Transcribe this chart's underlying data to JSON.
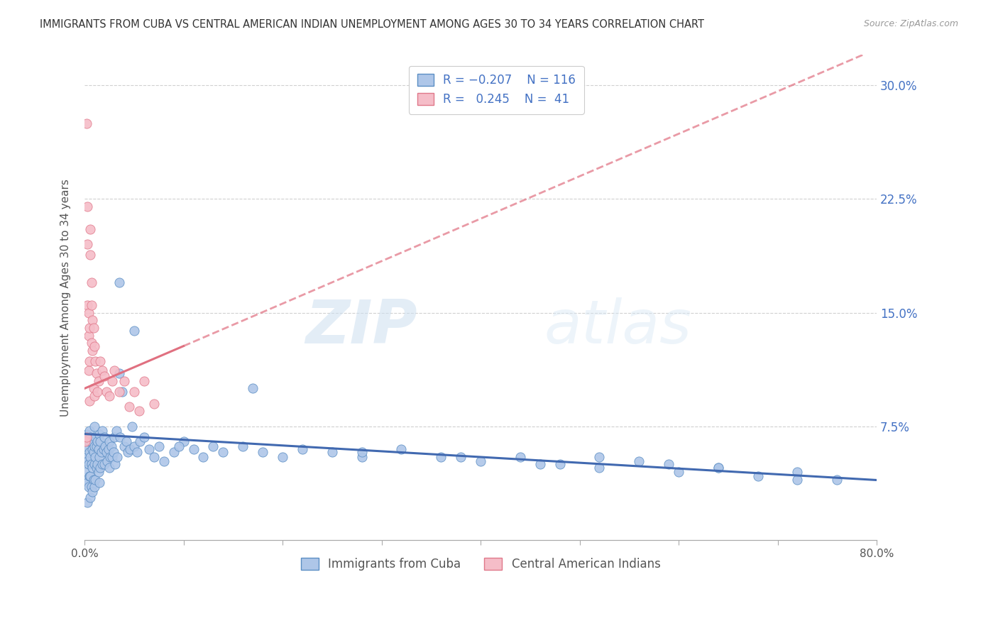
{
  "title": "IMMIGRANTS FROM CUBA VS CENTRAL AMERICAN INDIAN UNEMPLOYMENT AMONG AGES 30 TO 34 YEARS CORRELATION CHART",
  "source": "Source: ZipAtlas.com",
  "ylabel": "Unemployment Among Ages 30 to 34 years",
  "xlim": [
    0.0,
    0.8
  ],
  "ylim": [
    0.0,
    0.32
  ],
  "blue_fill": "#aec6e8",
  "blue_edge": "#5b8ec4",
  "pink_fill": "#f5bdc8",
  "pink_edge": "#e0788a",
  "blue_line_color": "#4169b0",
  "pink_line_color": "#e07080",
  "blue_intercept": 0.07,
  "blue_slope": -0.038,
  "pink_intercept": 0.1,
  "pink_slope": 0.28,
  "blue_dots_x": [
    0.001,
    0.001,
    0.002,
    0.002,
    0.002,
    0.003,
    0.003,
    0.003,
    0.003,
    0.004,
    0.004,
    0.004,
    0.005,
    0.005,
    0.005,
    0.006,
    0.006,
    0.006,
    0.006,
    0.007,
    0.007,
    0.007,
    0.008,
    0.008,
    0.008,
    0.009,
    0.009,
    0.01,
    0.01,
    0.01,
    0.01,
    0.011,
    0.011,
    0.011,
    0.012,
    0.012,
    0.013,
    0.013,
    0.014,
    0.014,
    0.015,
    0.015,
    0.015,
    0.016,
    0.016,
    0.017,
    0.018,
    0.018,
    0.019,
    0.02,
    0.02,
    0.021,
    0.022,
    0.023,
    0.024,
    0.025,
    0.025,
    0.026,
    0.027,
    0.028,
    0.029,
    0.03,
    0.031,
    0.032,
    0.033,
    0.035,
    0.036,
    0.038,
    0.04,
    0.042,
    0.044,
    0.046,
    0.048,
    0.05,
    0.053,
    0.056,
    0.06,
    0.065,
    0.07,
    0.075,
    0.08,
    0.09,
    0.1,
    0.11,
    0.12,
    0.13,
    0.14,
    0.16,
    0.18,
    0.2,
    0.22,
    0.25,
    0.28,
    0.32,
    0.36,
    0.4,
    0.44,
    0.48,
    0.52,
    0.56,
    0.6,
    0.64,
    0.68,
    0.72,
    0.76,
    0.035,
    0.05,
    0.095,
    0.17,
    0.28,
    0.38,
    0.46,
    0.52,
    0.59,
    0.64,
    0.72
  ],
  "blue_dots_y": [
    0.062,
    0.045,
    0.07,
    0.055,
    0.04,
    0.068,
    0.052,
    0.038,
    0.025,
    0.065,
    0.05,
    0.035,
    0.072,
    0.058,
    0.042,
    0.068,
    0.055,
    0.042,
    0.028,
    0.065,
    0.05,
    0.035,
    0.06,
    0.048,
    0.032,
    0.058,
    0.04,
    0.075,
    0.062,
    0.05,
    0.035,
    0.068,
    0.055,
    0.04,
    0.062,
    0.048,
    0.065,
    0.05,
    0.06,
    0.045,
    0.07,
    0.055,
    0.038,
    0.065,
    0.048,
    0.058,
    0.072,
    0.05,
    0.06,
    0.068,
    0.05,
    0.062,
    0.058,
    0.052,
    0.06,
    0.065,
    0.048,
    0.055,
    0.062,
    0.055,
    0.058,
    0.068,
    0.05,
    0.072,
    0.055,
    0.11,
    0.068,
    0.098,
    0.062,
    0.065,
    0.058,
    0.06,
    0.075,
    0.062,
    0.058,
    0.065,
    0.068,
    0.06,
    0.055,
    0.062,
    0.052,
    0.058,
    0.065,
    0.06,
    0.055,
    0.062,
    0.058,
    0.062,
    0.058,
    0.055,
    0.06,
    0.058,
    0.055,
    0.06,
    0.055,
    0.052,
    0.055,
    0.05,
    0.048,
    0.052,
    0.045,
    0.048,
    0.042,
    0.045,
    0.04,
    0.17,
    0.138,
    0.062,
    0.1,
    0.058,
    0.055,
    0.05,
    0.055,
    0.05,
    0.048,
    0.04
  ],
  "pink_dots_x": [
    0.001,
    0.002,
    0.002,
    0.003,
    0.003,
    0.003,
    0.004,
    0.004,
    0.004,
    0.005,
    0.005,
    0.005,
    0.006,
    0.006,
    0.007,
    0.007,
    0.007,
    0.008,
    0.008,
    0.009,
    0.009,
    0.01,
    0.01,
    0.011,
    0.012,
    0.013,
    0.014,
    0.016,
    0.018,
    0.02,
    0.022,
    0.025,
    0.028,
    0.03,
    0.035,
    0.04,
    0.045,
    0.05,
    0.055,
    0.06,
    0.07
  ],
  "pink_dots_y": [
    0.065,
    0.275,
    0.068,
    0.22,
    0.195,
    0.155,
    0.15,
    0.135,
    0.112,
    0.14,
    0.118,
    0.092,
    0.205,
    0.188,
    0.17,
    0.155,
    0.13,
    0.145,
    0.125,
    0.14,
    0.1,
    0.128,
    0.095,
    0.118,
    0.11,
    0.098,
    0.105,
    0.118,
    0.112,
    0.108,
    0.098,
    0.095,
    0.105,
    0.112,
    0.098,
    0.105,
    0.088,
    0.098,
    0.085,
    0.105,
    0.09
  ],
  "watermark_zip": "ZIP",
  "watermark_atlas": "atlas"
}
